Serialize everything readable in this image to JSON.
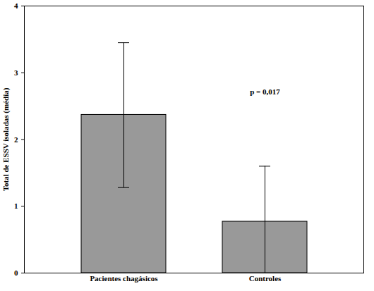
{
  "chart_data": {
    "type": "bar",
    "y_label": "Total de ESSV isoladas (média)",
    "categories": [
      "Pacientes chagásicos",
      "Controles"
    ],
    "values": [
      2.37,
      0.77
    ],
    "error_low": [
      1.28,
      0
    ],
    "error_high": [
      3.45,
      1.6
    ],
    "color": "#999999",
    "ylim": [
      0,
      4
    ],
    "yticks": [
      0,
      1,
      2,
      3,
      4
    ],
    "grid": false,
    "annotations": [
      "p = 0,017"
    ]
  }
}
